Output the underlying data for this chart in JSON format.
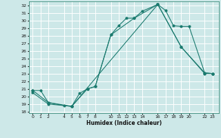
{
  "xlabel": "Humidex (Indice chaleur)",
  "bg_color": "#cde8e8",
  "grid_color": "#ffffff",
  "line_color": "#1a7a6e",
  "xlim": [
    -0.5,
    23.8
  ],
  "ylim": [
    17.8,
    32.5
  ],
  "xticks": [
    0,
    1,
    2,
    4,
    5,
    6,
    7,
    8,
    10,
    11,
    12,
    13,
    14,
    16,
    17,
    18,
    19,
    20,
    22,
    23
  ],
  "yticks": [
    18,
    19,
    20,
    21,
    22,
    23,
    24,
    25,
    26,
    27,
    28,
    29,
    30,
    31,
    32
  ],
  "line1_x": [
    0,
    1,
    2,
    4,
    5,
    6,
    7,
    8,
    10,
    11,
    12,
    13,
    14,
    16,
    17,
    18,
    19,
    20,
    22,
    23
  ],
  "line1_y": [
    20.8,
    20.8,
    19.2,
    18.8,
    18.7,
    20.4,
    21.0,
    21.3,
    28.1,
    29.3,
    30.3,
    30.3,
    31.2,
    32.1,
    31.3,
    29.3,
    29.2,
    29.2,
    23.1,
    23.0
  ],
  "line2_x": [
    0,
    2,
    5,
    7,
    8,
    10,
    13,
    16,
    19,
    22,
    23
  ],
  "line2_y": [
    20.8,
    19.2,
    18.7,
    21.0,
    21.3,
    28.1,
    30.3,
    32.1,
    26.5,
    23.1,
    23.0
  ],
  "line3_x": [
    0,
    2,
    5,
    16,
    19,
    22,
    23
  ],
  "line3_y": [
    20.5,
    19.0,
    18.7,
    32.1,
    26.5,
    23.0,
    23.0
  ]
}
